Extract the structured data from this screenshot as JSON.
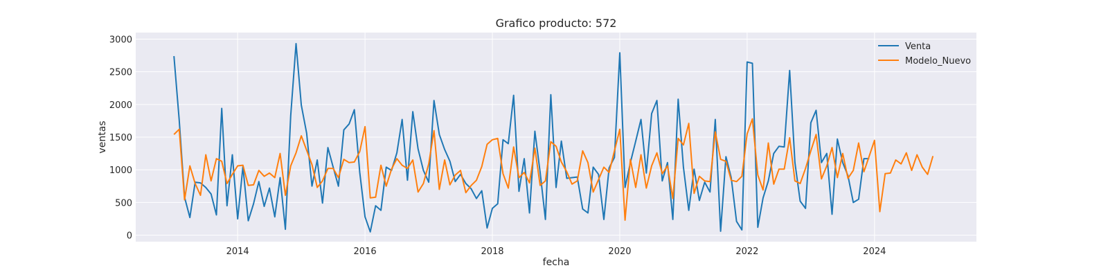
{
  "chart_data": {
    "type": "line",
    "title": "Grafico producto: 572",
    "xlabel": "fecha",
    "ylabel": "ventas",
    "xlim": [
      2012.4,
      2025.6
    ],
    "ylim": [
      -100,
      3100
    ],
    "xticks": [
      2014,
      2016,
      2018,
      2020,
      2022,
      2024
    ],
    "yticks": [
      0,
      500,
      1000,
      1500,
      2000,
      2500,
      3000
    ],
    "grid": true,
    "legend_position": "top-right",
    "plot_background": "#eaeaf2",
    "series": [
      {
        "name": "Venta",
        "color": "#1f77b4",
        "x": [
          2013.0,
          2013.083,
          2013.167,
          2013.25,
          2013.333,
          2013.417,
          2013.5,
          2013.583,
          2013.667,
          2013.75,
          2013.833,
          2013.917,
          2014.0,
          2014.083,
          2014.167,
          2014.25,
          2014.333,
          2014.417,
          2014.5,
          2014.583,
          2014.667,
          2014.75,
          2014.833,
          2014.917,
          2015.0,
          2015.083,
          2015.167,
          2015.25,
          2015.333,
          2015.417,
          2015.5,
          2015.583,
          2015.667,
          2015.75,
          2015.833,
          2015.917,
          2016.0,
          2016.083,
          2016.167,
          2016.25,
          2016.333,
          2016.417,
          2016.5,
          2016.583,
          2016.667,
          2016.75,
          2016.833,
          2016.917,
          2017.0,
          2017.083,
          2017.167,
          2017.25,
          2017.333,
          2017.417,
          2017.5,
          2017.583,
          2017.667,
          2017.75,
          2017.833,
          2017.917,
          2018.0,
          2018.083,
          2018.167,
          2018.25,
          2018.333,
          2018.417,
          2018.5,
          2018.583,
          2018.667,
          2018.75,
          2018.833,
          2018.917,
          2019.0,
          2019.083,
          2019.167,
          2019.25,
          2019.333,
          2019.417,
          2019.5,
          2019.583,
          2019.667,
          2019.75,
          2019.833,
          2019.917,
          2020.0,
          2020.083,
          2020.167,
          2020.25,
          2020.333,
          2020.417,
          2020.5,
          2020.583,
          2020.667,
          2020.75,
          2020.833,
          2020.917,
          2021.0,
          2021.083,
          2021.167,
          2021.25,
          2021.333,
          2021.417,
          2021.5,
          2021.583,
          2021.667,
          2021.75,
          2021.833,
          2021.917,
          2022.0,
          2022.083,
          2022.167,
          2022.25,
          2022.333,
          2022.417,
          2022.5,
          2022.583,
          2022.667,
          2022.75,
          2022.833,
          2022.917,
          2023.0,
          2023.083,
          2023.167,
          2023.25,
          2023.333,
          2023.417,
          2023.5,
          2023.583,
          2023.667,
          2023.75,
          2023.833,
          2023.917
        ],
        "values": [
          2740,
          1760,
          580,
          270,
          810,
          800,
          730,
          630,
          310,
          1940,
          450,
          1230,
          250,
          1050,
          220,
          480,
          820,
          440,
          720,
          280,
          880,
          90,
          1830,
          2930,
          1990,
          1560,
          750,
          1150,
          490,
          1340,
          1040,
          750,
          1610,
          1700,
          1920,
          960,
          280,
          50,
          450,
          380,
          1040,
          990,
          1260,
          1770,
          840,
          1890,
          1320,
          990,
          810,
          2060,
          1540,
          1310,
          1130,
          820,
          930,
          790,
          710,
          560,
          680,
          110,
          410,
          480,
          1460,
          1400,
          2140,
          670,
          1170,
          340,
          1590,
          960,
          240,
          2150,
          730,
          1440,
          870,
          880,
          890,
          400,
          340,
          1040,
          930,
          240,
          1030,
          1190,
          2790,
          730,
          1110,
          1440,
          1770,
          950,
          1860,
          2060,
          830,
          1110,
          240,
          2080,
          1040,
          380,
          1010,
          530,
          810,
          660,
          1770,
          60,
          1200,
          880,
          210,
          80,
          2650,
          2630,
          120,
          570,
          830,
          1250,
          1360,
          1350,
          2520,
          1110,
          520,
          410,
          1720,
          1910,
          1110,
          1250,
          320,
          1470,
          1110,
          910,
          500,
          550,
          1170,
          1170
        ]
      },
      {
        "name": "Modelo_Nuevo",
        "color": "#ff7f0e",
        "x": [
          2013.0,
          2013.083,
          2013.167,
          2013.25,
          2013.333,
          2013.417,
          2013.5,
          2013.583,
          2013.667,
          2013.75,
          2013.833,
          2013.917,
          2014.0,
          2014.083,
          2014.167,
          2014.25,
          2014.333,
          2014.417,
          2014.5,
          2014.583,
          2014.667,
          2014.75,
          2014.833,
          2014.917,
          2015.0,
          2015.083,
          2015.167,
          2015.25,
          2015.333,
          2015.417,
          2015.5,
          2015.583,
          2015.667,
          2015.75,
          2015.833,
          2015.917,
          2016.0,
          2016.083,
          2016.167,
          2016.25,
          2016.333,
          2016.417,
          2016.5,
          2016.583,
          2016.667,
          2016.75,
          2016.833,
          2016.917,
          2017.0,
          2017.083,
          2017.167,
          2017.25,
          2017.333,
          2017.417,
          2017.5,
          2017.583,
          2017.667,
          2017.75,
          2017.833,
          2017.917,
          2018.0,
          2018.083,
          2018.167,
          2018.25,
          2018.333,
          2018.417,
          2018.5,
          2018.583,
          2018.667,
          2018.75,
          2018.833,
          2018.917,
          2019.0,
          2019.083,
          2019.167,
          2019.25,
          2019.333,
          2019.417,
          2019.5,
          2019.583,
          2019.667,
          2019.75,
          2019.833,
          2019.917,
          2020.0,
          2020.083,
          2020.167,
          2020.25,
          2020.333,
          2020.417,
          2020.5,
          2020.583,
          2020.667,
          2020.75,
          2020.833,
          2020.917,
          2021.0,
          2021.083,
          2021.167,
          2021.25,
          2021.333,
          2021.417,
          2021.5,
          2021.583,
          2021.667,
          2021.75,
          2021.833,
          2021.917,
          2022.0,
          2022.083,
          2022.167,
          2022.25,
          2022.333,
          2022.417,
          2022.5,
          2022.583,
          2022.667,
          2022.75,
          2022.833,
          2022.917,
          2023.0,
          2023.083,
          2023.167,
          2023.25,
          2023.333,
          2023.417,
          2023.5,
          2023.583,
          2023.667,
          2023.75,
          2023.833,
          2023.917,
          2024.0,
          2024.083,
          2024.167,
          2024.25,
          2024.333,
          2024.417,
          2024.5,
          2024.583,
          2024.667,
          2024.75,
          2024.833,
          2024.917
        ],
        "values": [
          1540,
          1620,
          540,
          1060,
          790,
          610,
          1230,
          830,
          1170,
          1130,
          790,
          930,
          1060,
          1070,
          760,
          770,
          990,
          900,
          950,
          880,
          1250,
          610,
          1060,
          1260,
          1520,
          1300,
          1080,
          730,
          830,
          1020,
          1020,
          880,
          1160,
          1110,
          1120,
          1280,
          1660,
          570,
          580,
          1070,
          750,
          1010,
          1170,
          1070,
          1020,
          1150,
          660,
          790,
          1090,
          1600,
          700,
          1150,
          770,
          920,
          990,
          650,
          760,
          840,
          1050,
          1390,
          1460,
          1480,
          940,
          720,
          1350,
          880,
          960,
          800,
          1330,
          760,
          830,
          1430,
          1360,
          1120,
          970,
          780,
          830,
          1290,
          1110,
          660,
          850,
          1040,
          960,
          1290,
          1620,
          230,
          1160,
          730,
          1230,
          720,
          1060,
          1260,
          940,
          1060,
          560,
          1480,
          1380,
          1710,
          640,
          900,
          830,
          820,
          1580,
          1160,
          1130,
          840,
          820,
          900,
          1550,
          1780,
          920,
          690,
          1410,
          780,
          1010,
          1010,
          1490,
          830,
          790,
          1020,
          1290,
          1540,
          860,
          1060,
          1340,
          880,
          1250,
          870,
          990,
          1410,
          970,
          1210,
          1450,
          360,
          940,
          950,
          1150,
          1090,
          1260,
          990,
          1230,
          1040,
          930,
          1210
        ]
      }
    ]
  }
}
